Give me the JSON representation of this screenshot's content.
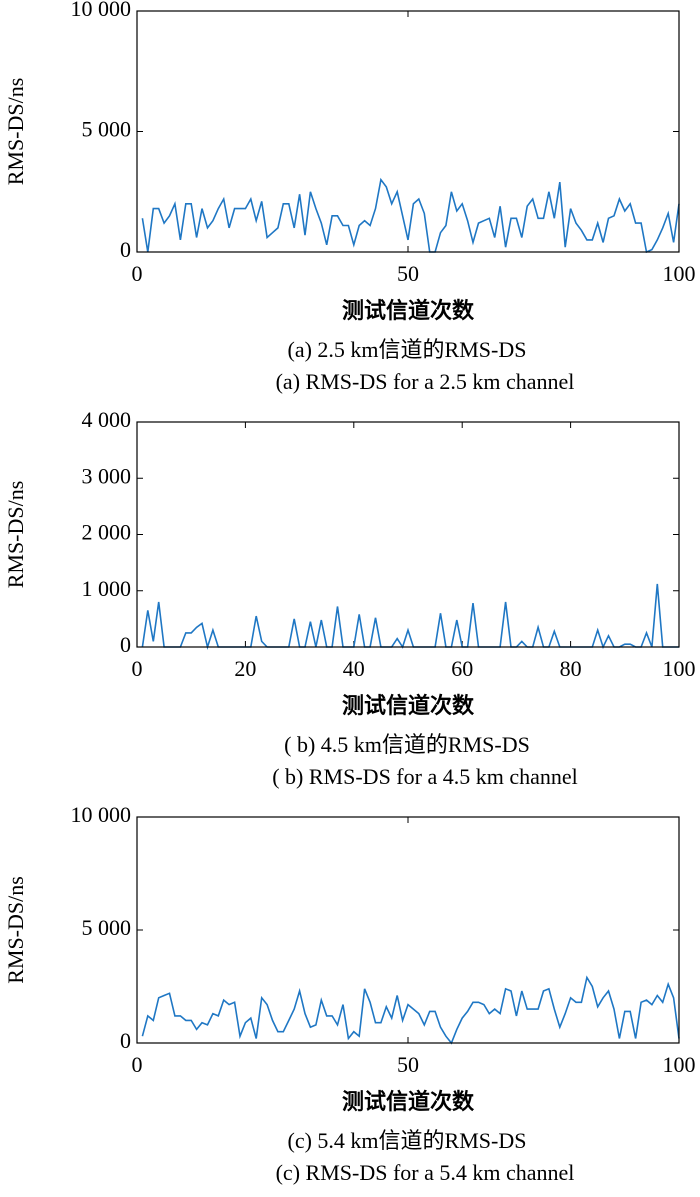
{
  "chart_data": [
    {
      "type": "line",
      "ylabel": "RMS-DS/ns",
      "xlabel": "测试信道次数",
      "caption_cn": "(a) 2.5 km信道的RMS-DS",
      "caption_en": "(a) RMS-DS for a 2.5 km channel",
      "color": "#1f77c4",
      "xlim": [
        0,
        100
      ],
      "xticks": [
        0,
        50,
        100
      ],
      "ylim": [
        0,
        10000
      ],
      "yticks": [
        0,
        {
          "value": 5000,
          "label": "5 000"
        },
        {
          "value": 10000,
          "label": "10 000"
        }
      ],
      "x": [
        1,
        2,
        3,
        4,
        5,
        6,
        7,
        8,
        9,
        10,
        11,
        12,
        13,
        14,
        15,
        16,
        17,
        18,
        19,
        20,
        21,
        22,
        23,
        24,
        25,
        26,
        27,
        28,
        29,
        30,
        31,
        32,
        33,
        34,
        35,
        36,
        37,
        38,
        39,
        40,
        41,
        42,
        43,
        44,
        45,
        46,
        47,
        48,
        49,
        50,
        51,
        52,
        53,
        54,
        55,
        56,
        57,
        58,
        59,
        60,
        61,
        62,
        63,
        64,
        65,
        66,
        67,
        68,
        69,
        70,
        71,
        72,
        73,
        74,
        75,
        76,
        77,
        78,
        79,
        80,
        81,
        82,
        83,
        84,
        85,
        86,
        87,
        88,
        89,
        90,
        91,
        92,
        93,
        94,
        95,
        96,
        97,
        98,
        99,
        100
      ],
      "values": [
        1400,
        0,
        1800,
        1800,
        1200,
        1500,
        2000,
        500,
        2000,
        2000,
        600,
        1800,
        1000,
        1300,
        1800,
        2200,
        1000,
        1800,
        1800,
        1800,
        2200,
        1300,
        2100,
        600,
        800,
        1000,
        2000,
        2000,
        1000,
        2400,
        700,
        2500,
        1800,
        1200,
        300,
        1500,
        1500,
        1100,
        1100,
        300,
        1100,
        1300,
        1100,
        1800,
        3000,
        2700,
        2000,
        2500,
        1500,
        500,
        2000,
        2200,
        1600,
        0,
        0,
        800,
        1100,
        2500,
        1700,
        2000,
        1300,
        400,
        1200,
        1300,
        1400,
        600,
        1900,
        200,
        1400,
        1400,
        600,
        1900,
        2200,
        1400,
        1400,
        2500,
        1400,
        2900,
        200,
        1800,
        1200,
        900,
        500,
        500,
        1200,
        400,
        1400,
        1500,
        2200,
        1700,
        2000,
        1200,
        1200,
        0,
        100,
        500,
        1000,
        1600,
        400,
        2000
      ]
    },
    {
      "type": "line",
      "ylabel": "RMS-DS/ns",
      "xlabel": "测试信道次数",
      "caption_cn": "( b) 4.5 km信道的RMS-DS",
      "caption_en": "( b) RMS-DS for a 4.5 km channel",
      "color": "#1f77c4",
      "xlim": [
        0,
        100
      ],
      "xticks": [
        0,
        20,
        40,
        60,
        80,
        100
      ],
      "ylim": [
        0,
        4000
      ],
      "yticks": [
        0,
        {
          "value": 1000,
          "label": "1 000"
        },
        {
          "value": 2000,
          "label": "2 000"
        },
        {
          "value": 3000,
          "label": "3 000"
        },
        {
          "value": 4000,
          "label": "4 000"
        }
      ],
      "x": [
        1,
        2,
        3,
        4,
        5,
        6,
        7,
        8,
        9,
        10,
        11,
        12,
        13,
        14,
        15,
        16,
        17,
        18,
        19,
        20,
        21,
        22,
        23,
        24,
        25,
        26,
        27,
        28,
        29,
        30,
        31,
        32,
        33,
        34,
        35,
        36,
        37,
        38,
        39,
        40,
        41,
        42,
        43,
        44,
        45,
        46,
        47,
        48,
        49,
        50,
        51,
        52,
        53,
        54,
        55,
        56,
        57,
        58,
        59,
        60,
        61,
        62,
        63,
        64,
        65,
        66,
        67,
        68,
        69,
        70,
        71,
        72,
        73,
        74,
        75,
        76,
        77,
        78,
        79,
        80,
        81,
        82,
        83,
        84,
        85,
        86,
        87,
        88,
        89,
        90,
        91,
        92,
        93,
        94,
        95,
        96,
        97,
        98,
        99,
        100
      ],
      "values": [
        0,
        650,
        100,
        800,
        0,
        0,
        0,
        0,
        250,
        250,
        350,
        420,
        0,
        300,
        0,
        0,
        0,
        0,
        0,
        0,
        0,
        550,
        100,
        0,
        0,
        0,
        0,
        0,
        500,
        0,
        0,
        450,
        0,
        480,
        0,
        0,
        720,
        0,
        0,
        0,
        580,
        0,
        0,
        520,
        0,
        0,
        0,
        150,
        0,
        300,
        0,
        0,
        0,
        0,
        0,
        600,
        0,
        0,
        480,
        0,
        0,
        780,
        0,
        0,
        0,
        0,
        0,
        800,
        0,
        0,
        100,
        0,
        0,
        350,
        0,
        0,
        280,
        0,
        0,
        0,
        0,
        0,
        0,
        0,
        300,
        0,
        200,
        0,
        0,
        50,
        50,
        0,
        0,
        250,
        0,
        1120,
        0,
        0,
        0,
        0
      ]
    },
    {
      "type": "line",
      "ylabel": "RMS-DS/ns",
      "xlabel": "测试信道次数",
      "caption_cn": "(c) 5.4 km信道的RMS-DS",
      "caption_en": "(c) RMS-DS for a 5.4 km channel",
      "color": "#1f77c4",
      "xlim": [
        0,
        100
      ],
      "xticks": [
        0,
        50,
        100
      ],
      "ylim": [
        0,
        10000
      ],
      "yticks": [
        0,
        {
          "value": 5000,
          "label": "5 000"
        },
        {
          "value": 10000,
          "label": "10 000"
        }
      ],
      "x": [
        1,
        2,
        3,
        4,
        5,
        6,
        7,
        8,
        9,
        10,
        11,
        12,
        13,
        14,
        15,
        16,
        17,
        18,
        19,
        20,
        21,
        22,
        23,
        24,
        25,
        26,
        27,
        28,
        29,
        30,
        31,
        32,
        33,
        34,
        35,
        36,
        37,
        38,
        39,
        40,
        41,
        42,
        43,
        44,
        45,
        46,
        47,
        48,
        49,
        50,
        51,
        52,
        53,
        54,
        55,
        56,
        57,
        58,
        59,
        60,
        61,
        62,
        63,
        64,
        65,
        66,
        67,
        68,
        69,
        70,
        71,
        72,
        73,
        74,
        75,
        76,
        77,
        78,
        79,
        80,
        81,
        82,
        83,
        84,
        85,
        86,
        87,
        88,
        89,
        90,
        91,
        92,
        93,
        94,
        95,
        96,
        97,
        98,
        99,
        100
      ],
      "values": [
        300,
        1200,
        1000,
        2000,
        2100,
        2200,
        1200,
        1200,
        1000,
        1000,
        600,
        900,
        800,
        1300,
        1200,
        1900,
        1700,
        1800,
        300,
        900,
        1100,
        200,
        2000,
        1700,
        1000,
        500,
        500,
        1000,
        1500,
        2300,
        1300,
        700,
        800,
        1900,
        1200,
        1200,
        800,
        1700,
        200,
        500,
        300,
        2400,
        1800,
        900,
        900,
        1600,
        1100,
        2100,
        1000,
        1700,
        1500,
        1300,
        800,
        1400,
        1400,
        700,
        300,
        0,
        600,
        1100,
        1400,
        1800,
        1800,
        1700,
        1300,
        1500,
        1300,
        2400,
        2300,
        1200,
        2300,
        1500,
        1500,
        1500,
        2300,
        2400,
        1500,
        700,
        1300,
        2000,
        1800,
        1800,
        2900,
        2500,
        1600,
        2000,
        2300,
        1500,
        200,
        1400,
        1400,
        200,
        1800,
        1900,
        1700,
        2100,
        1800,
        2600,
        2000,
        200
      ]
    }
  ]
}
